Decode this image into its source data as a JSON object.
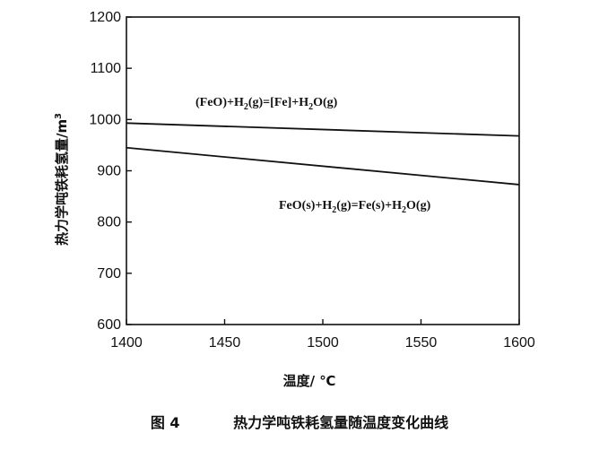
{
  "chart_data": {
    "type": "line",
    "xlabel": "温度/ ℃",
    "ylabel": "热力学吨铁耗氢量/m³",
    "xlim": [
      1400,
      1600
    ],
    "ylim": [
      600,
      1200
    ],
    "x_ticks": [
      1400,
      1450,
      1500,
      1550,
      1600
    ],
    "y_ticks": [
      600,
      700,
      800,
      900,
      1000,
      1100,
      1200
    ],
    "grid": false,
    "series": [
      {
        "name": "(FeO)+H2(g)=[Fe]+H2O(g)",
        "label_parts": [
          "(FeO)+H",
          "2",
          "(g)=[Fe]+H",
          "2",
          "O(g)"
        ],
        "x": [
          1400,
          1600
        ],
        "y": [
          993,
          968
        ]
      },
      {
        "name": "FeO(s)+H2(g)=Fe(s)+H2O(g)",
        "label_parts": [
          "FeO(s)+H",
          "2",
          "(g)=Fe(s)+H",
          "2",
          "O(g)"
        ],
        "x": [
          1400,
          1600
        ],
        "y": [
          945,
          873
        ]
      }
    ]
  },
  "caption": {
    "figure_number": "图  4",
    "title": "热力学吨铁耗氢量随温度变化曲线"
  }
}
